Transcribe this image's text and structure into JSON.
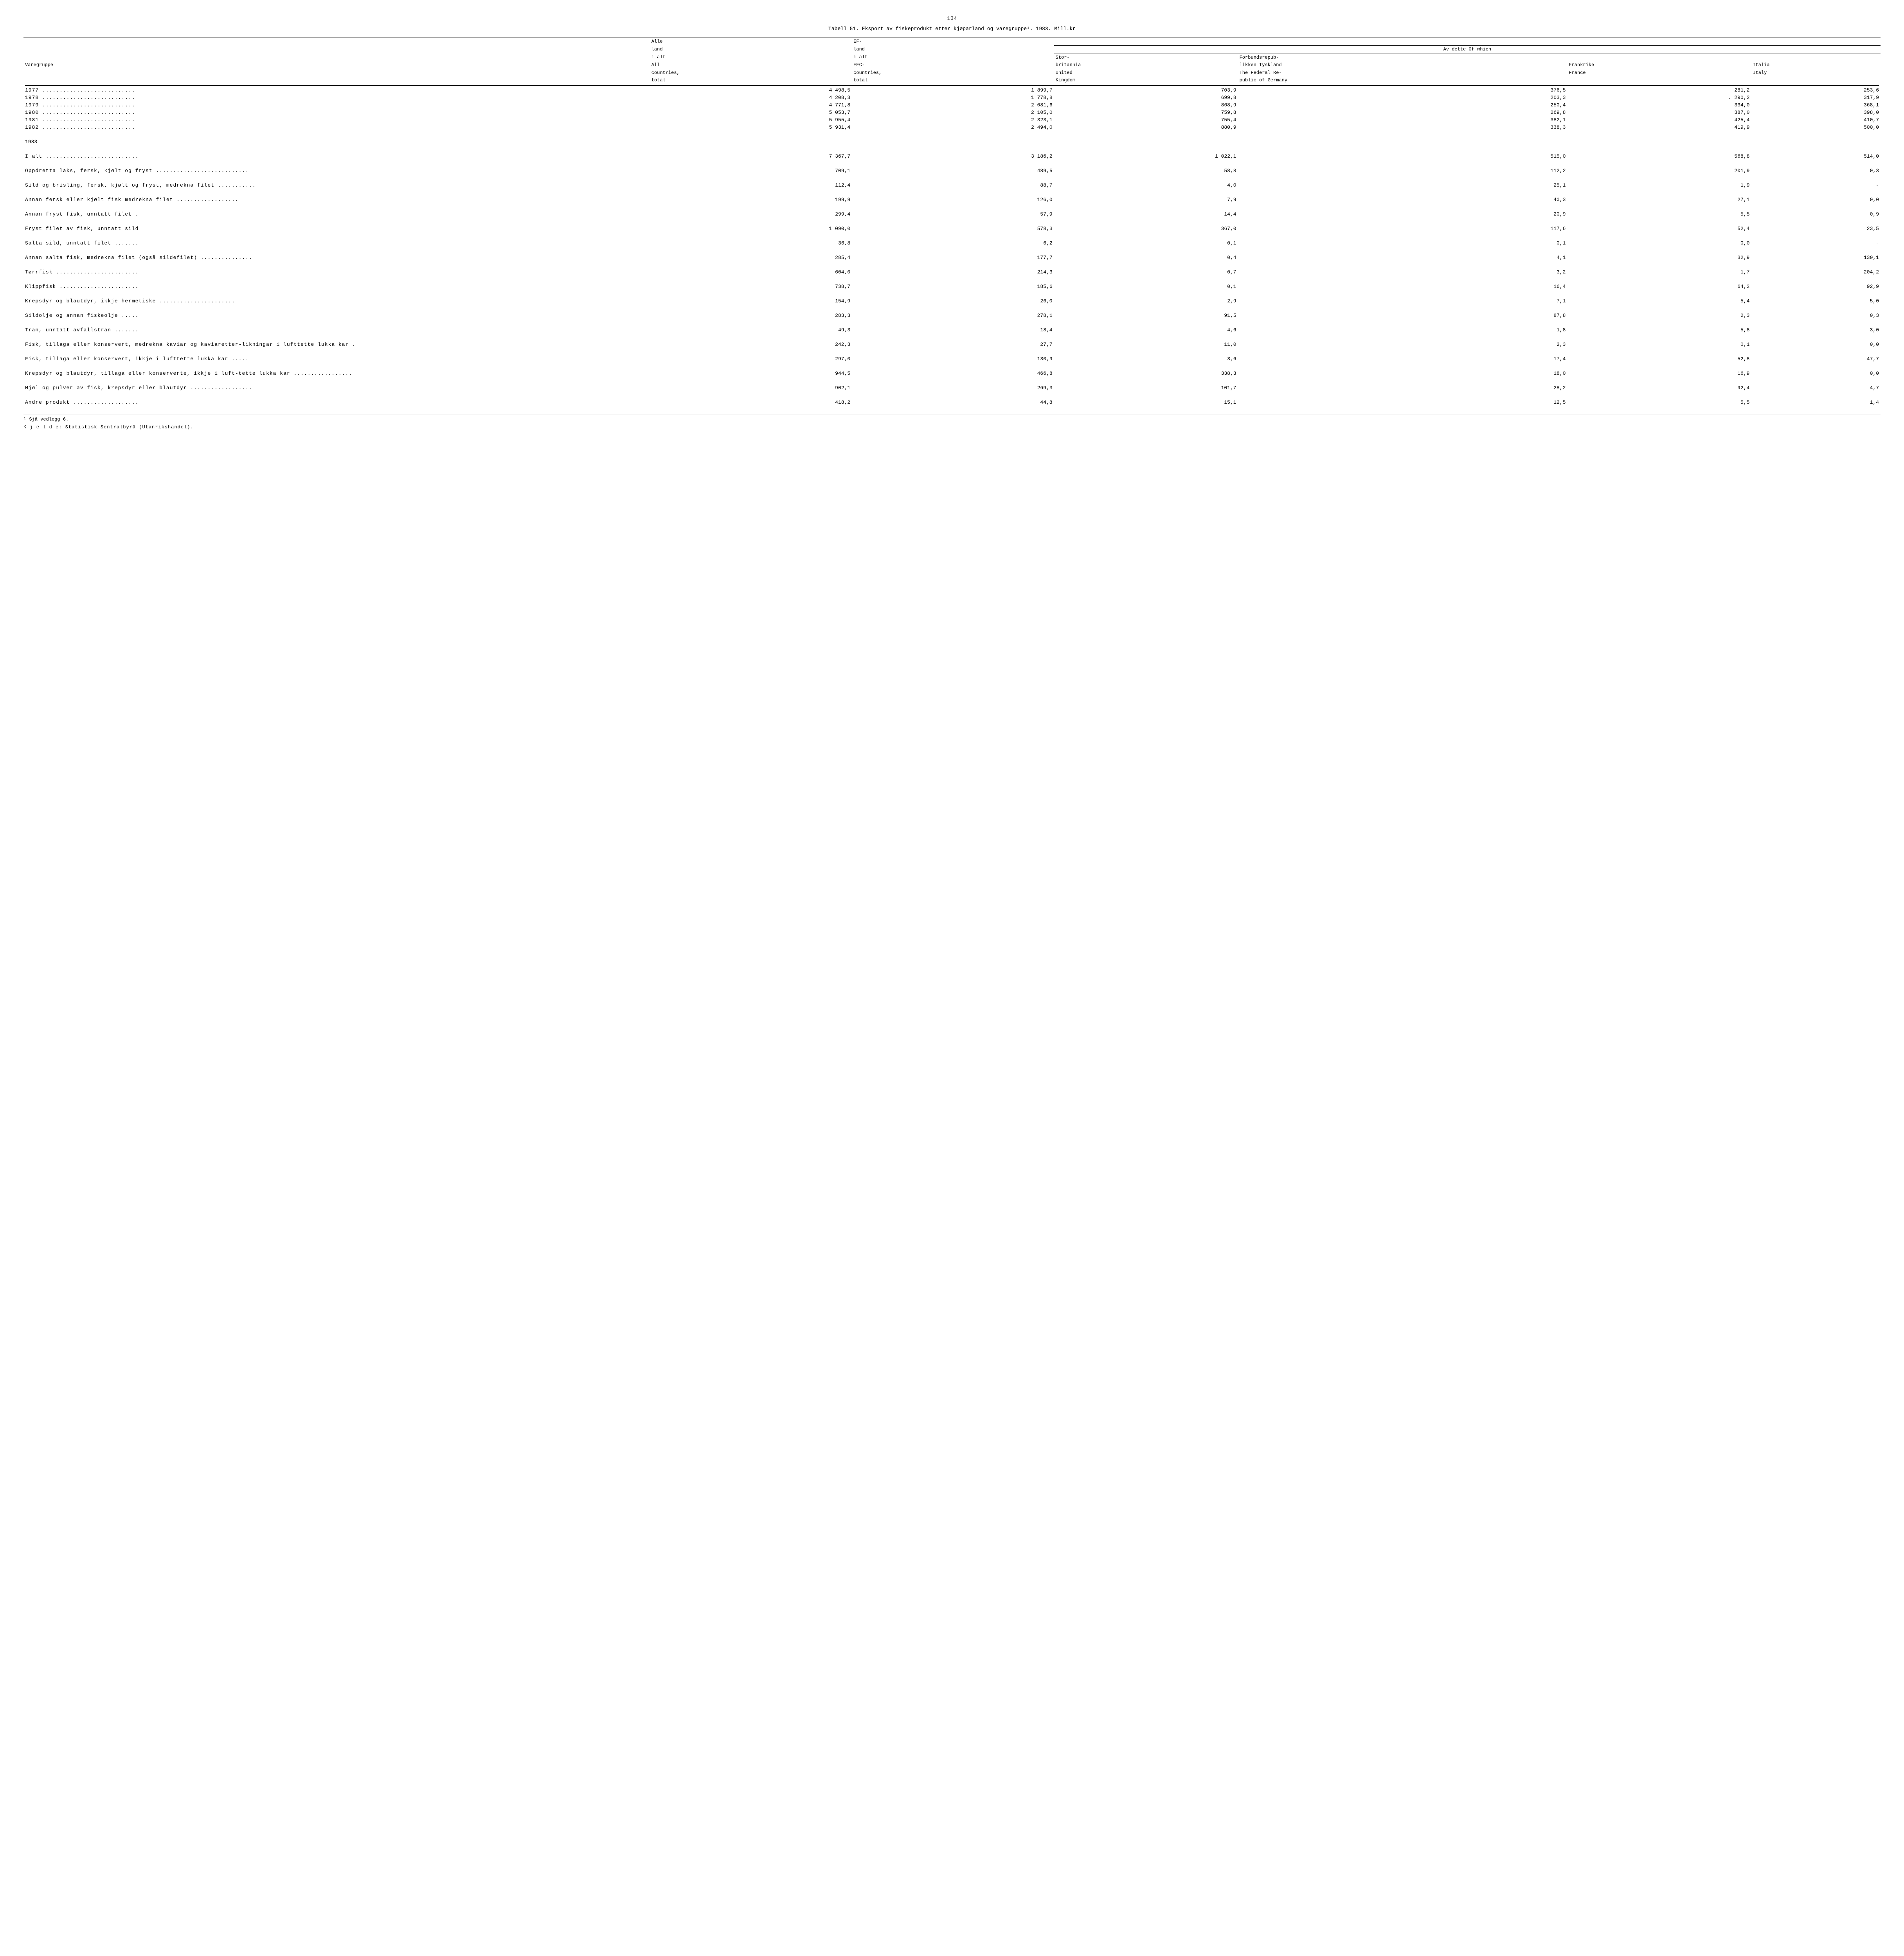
{
  "page_number": "134",
  "table_caption": "Tabell 51.  Eksport av fiskeprodukt etter kjøparland og varegruppe¹.  1983.  Mill.kr",
  "header": {
    "varegruppe": "Varegruppe",
    "alle_land": {
      "l1": "Alle",
      "l2": "land",
      "l3": "i alt",
      "l4": "All",
      "l5": "countries,",
      "l6": "total"
    },
    "ef_land": {
      "l1": "EF-",
      "l2": "land",
      "l3": "i alt",
      "l4": "EEC-",
      "l5": "countries,",
      "l6": "total"
    },
    "ofwhich": "Av dette    Of which",
    "uk": {
      "l1": "Stor-",
      "l2": "britannia",
      "l3": "United",
      "l4": "Kingdom"
    },
    "de": {
      "l1": "Forbundsrepub-",
      "l2": "likken Tyskland",
      "l3": "The Federal Re-",
      "l4": "public of Germany"
    },
    "fr": {
      "l1": "Frankrike",
      "l2": "France"
    },
    "it": {
      "l1": "Italia",
      "l2": "Italy"
    }
  },
  "years": [
    {
      "label": "1977 ...........................",
      "v": [
        "4 498,5",
        "1 899,7",
        "703,9",
        "376,5",
        "281,2",
        "253,6"
      ]
    },
    {
      "label": "1978 ...........................",
      "v": [
        "4 208,3",
        "1 778,8",
        "699,8",
        "203,3",
        ". 290,2",
        "317,9"
      ]
    },
    {
      "label": "1979 ...........................",
      "v": [
        "4 771,8",
        "2 081,6",
        "868,9",
        "250,4",
        "334,0",
        "368,1"
      ]
    },
    {
      "label": "1980 ...........................",
      "v": [
        "5 053,7",
        "2 105,0",
        "759,8",
        "269,8",
        "387,0",
        "398,0"
      ]
    },
    {
      "label": "1981 ...........................",
      "v": [
        "5 955,4",
        "2 323,1",
        "755,4",
        "382,1",
        "425,4",
        "410,7"
      ]
    },
    {
      "label": "1982 ...........................",
      "v": [
        "5 931,4",
        "2 494,0",
        "880,9",
        "338,3",
        "419,9",
        "500,0"
      ]
    }
  ],
  "section": "1983",
  "total_row": {
    "label": "I alt ...........................",
    "v": [
      "7 367,7",
      "3 186,2",
      "1 022,1",
      "515,0",
      "568,8",
      "514,0"
    ]
  },
  "rows": [
    {
      "label": "Oppdretta laks, fersk, kjølt og fryst ...........................",
      "v": [
        "709,1",
        "489,5",
        "58,8",
        "112,2",
        "201,9",
        "0,3"
      ]
    },
    {
      "label": "Sild og brisling, fersk, kjølt og fryst, medrekna filet ...........",
      "v": [
        "112,4",
        "88,7",
        "4,0",
        "25,1",
        "1,9",
        "-"
      ]
    },
    {
      "label": "Annan fersk eller kjølt fisk medrekna filet ..................",
      "v": [
        "199,9",
        "126,0",
        "7,9",
        "40,3",
        "27,1",
        "0,0"
      ]
    },
    {
      "label": "Annan fryst fisk, unntatt filet .",
      "v": [
        "299,4",
        "57,9",
        "14,4",
        "20,9",
        "5,5",
        "0,9"
      ]
    },
    {
      "label": "Fryst filet av fisk, unntatt sild",
      "v": [
        "1 090,0",
        "578,3",
        "367,0",
        "117,6",
        "52,4",
        "23,5"
      ]
    },
    {
      "label": "Salta sild, unntatt filet .......",
      "v": [
        "36,8",
        "6,2",
        "0,1",
        "0,1",
        "0,0",
        "-"
      ]
    },
    {
      "label": "Annan salta fisk, medrekna filet (også sildefilet) ...............",
      "v": [
        "285,4",
        "177,7",
        "0,4",
        "4,1",
        "32,9",
        "130,1"
      ]
    },
    {
      "label": "Tørrfisk ........................",
      "v": [
        "604,0",
        "214,3",
        "0,7",
        "3,2",
        "1,7",
        "204,2"
      ]
    },
    {
      "label": "Klippfisk .......................",
      "v": [
        "738,7",
        "185,6",
        "0,1",
        "16,4",
        "64,2",
        "92,9"
      ]
    },
    {
      "label": "Krepsdyr og blautdyr, ikkje hermetiske ......................",
      "v": [
        "154,9",
        "26,0",
        "2,9",
        "7,1",
        "5,4",
        "5,0"
      ]
    },
    {
      "label": "Sildolje og annan fiskeolje .....",
      "v": [
        "283,3",
        "278,1",
        "91,5",
        "87,8",
        "2,3",
        "0,3"
      ]
    },
    {
      "label": "Tran, unntatt avfallstran .......",
      "v": [
        "49,3",
        "18,4",
        "4,6",
        "1,8",
        "5,8",
        "3,0"
      ]
    },
    {
      "label": "Fisk, tillaga eller konservert, medrekna kaviar og kaviaretter-likningar i lufttette lukka kar .",
      "v": [
        "242,3",
        "27,7",
        "11,0",
        "2,3",
        "0,1",
        "0,0"
      ]
    },
    {
      "label": "Fisk, tillaga eller konservert, ikkje i lufttette lukka kar .....",
      "v": [
        "297,0",
        "130,9",
        "3,6",
        "17,4",
        "52,8",
        "47,7"
      ]
    },
    {
      "label": "Krepsdyr og blautdyr, tillaga eller konserverte, ikkje i luft-tette lukka kar .................",
      "v": [
        "944,5",
        "466,8",
        "338,3",
        "18,0",
        "16,9",
        "0,0"
      ]
    },
    {
      "label": "Mjøl og pulver av fisk, krepsdyr eller blautdyr ..................",
      "v": [
        "902,1",
        "269,3",
        "101,7",
        "28,2",
        "92,4",
        "4,7"
      ]
    },
    {
      "label": "Andre produkt ...................",
      "v": [
        "418,2",
        "44,8",
        "15,1",
        "12,5",
        "5,5",
        "1,4"
      ]
    }
  ],
  "footnote": "¹ Sjå vedlegg 6.",
  "source": "K j e l d e:  Statistisk Sentralbyrå (Utanrikshandel)."
}
